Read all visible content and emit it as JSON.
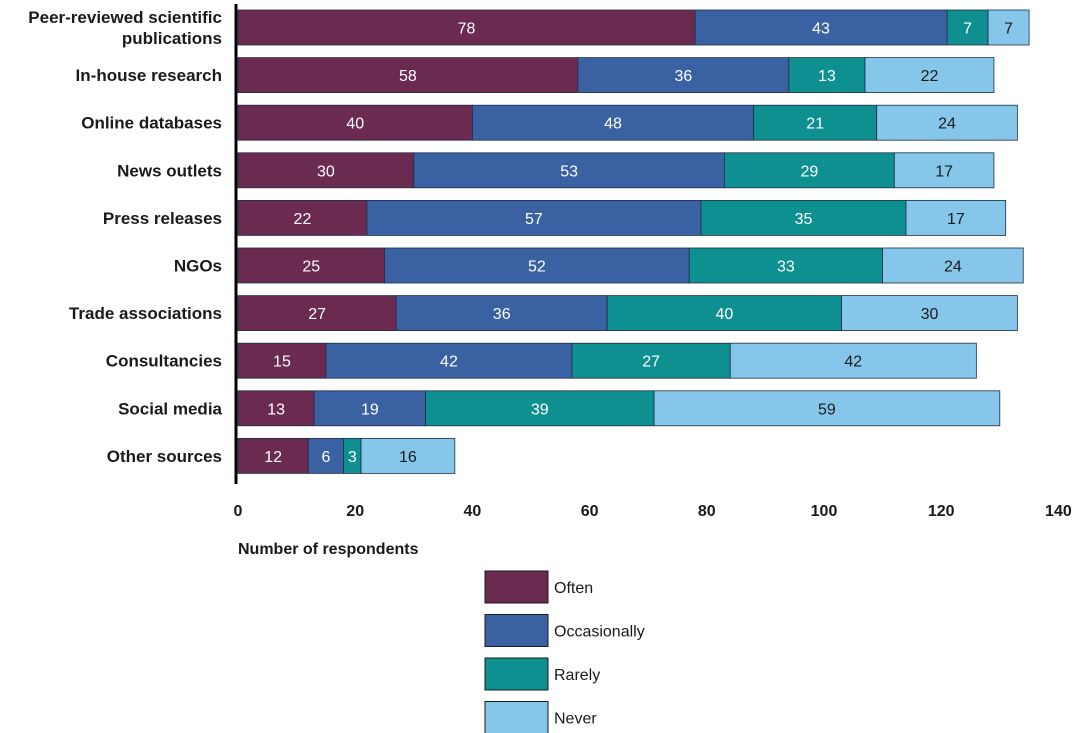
{
  "chart_data": {
    "type": "bar",
    "orientation": "horizontal",
    "stacked": true,
    "title": "",
    "xlabel": "Number of respondents",
    "ylabel": "",
    "xlim": [
      0,
      140
    ],
    "xticks": [
      0,
      20,
      40,
      60,
      80,
      100,
      120,
      140
    ],
    "grid": false,
    "legend": "bottom-center",
    "categories": [
      [
        "Peer-reviewed scientific",
        "publications"
      ],
      [
        "In-house research"
      ],
      [
        "Online databases"
      ],
      [
        "News outlets"
      ],
      [
        "Press releases"
      ],
      [
        "NGOs"
      ],
      [
        "Trade associations"
      ],
      [
        "Consultancies"
      ],
      [
        "Social media"
      ],
      [
        "Other sources"
      ]
    ],
    "series": [
      {
        "name": "Often",
        "color": "#6b2a4f",
        "label_color": "#ffffff",
        "values": [
          78,
          58,
          40,
          30,
          22,
          25,
          27,
          15,
          13,
          12
        ]
      },
      {
        "name": "Occasionally",
        "color": "#3a62a3",
        "label_color": "#ffffff",
        "values": [
          43,
          36,
          48,
          53,
          57,
          52,
          36,
          42,
          19,
          6
        ]
      },
      {
        "name": "Rarely",
        "color": "#0f9090",
        "label_color": "#ffffff",
        "values": [
          7,
          13,
          21,
          29,
          35,
          33,
          40,
          27,
          39,
          3
        ]
      },
      {
        "name": "Never",
        "color": "#86c6ea",
        "label_color": "#1a1a1a",
        "values": [
          7,
          22,
          24,
          17,
          17,
          24,
          30,
          42,
          59,
          16
        ]
      }
    ]
  }
}
